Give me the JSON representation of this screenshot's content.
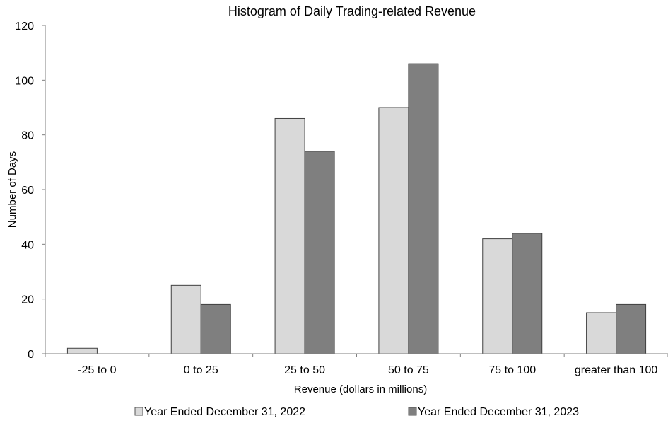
{
  "chart_data": {
    "type": "bar",
    "title": "Histogram of Daily Trading-related Revenue",
    "xlabel": "Revenue (dollars in millions)",
    "ylabel": "Number of Days",
    "ylim": [
      0,
      120
    ],
    "yticks": [
      "0",
      "20",
      "40",
      "60",
      "80",
      "100",
      "120"
    ],
    "categories": [
      "-25 to 0",
      "0 to 25",
      "25 to 50",
      "50 to 75",
      "75 to 100",
      "greater than 100"
    ],
    "series": [
      {
        "name": "Year Ended December 31, 2022",
        "color": "#d9d9d9",
        "values": [
          2,
          25,
          86,
          90,
          42,
          15
        ]
      },
      {
        "name": "Year Ended December 31, 2023",
        "color": "#7f7f7f",
        "values": [
          0,
          18,
          74,
          106,
          44,
          18
        ]
      }
    ],
    "grid": false,
    "legend_position": "bottom"
  }
}
